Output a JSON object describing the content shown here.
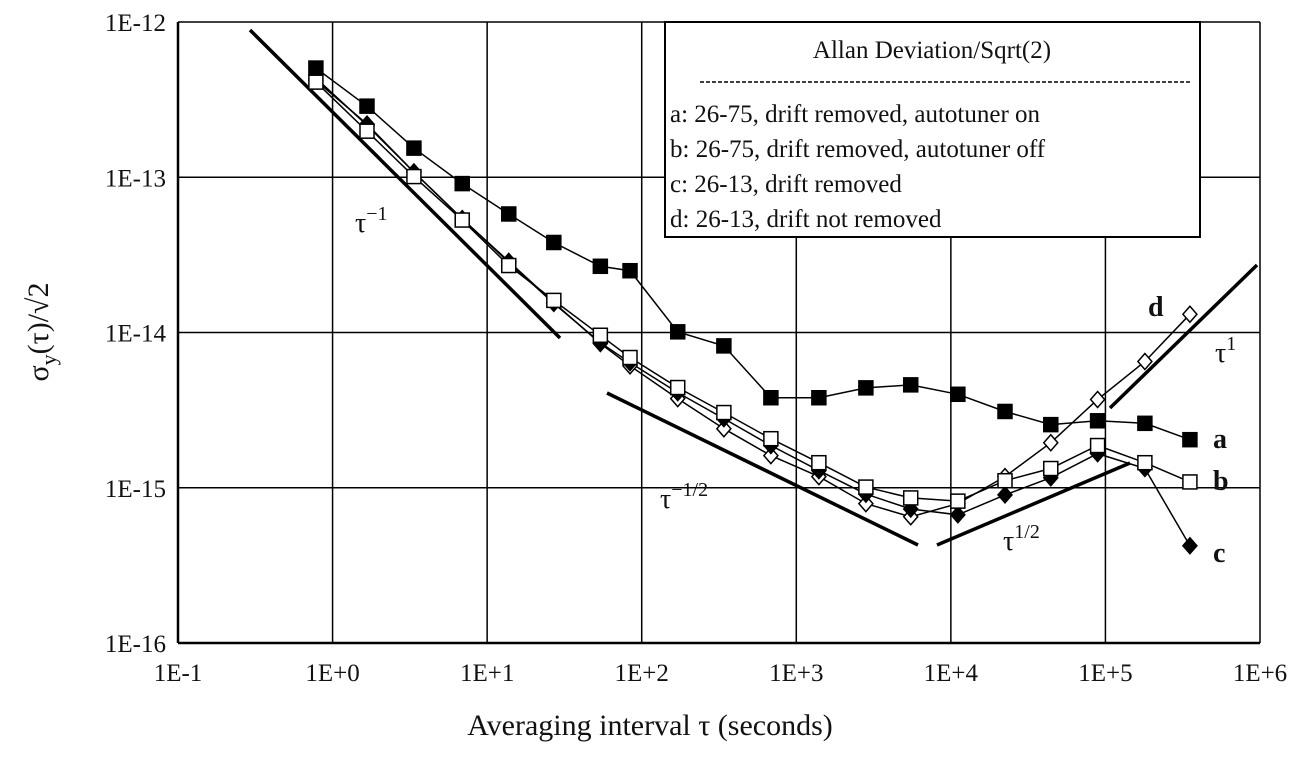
{
  "chart_data": {
    "type": "line",
    "legend_title": "Allan Deviation/Sqrt(2)",
    "xlabel": "Averaging interval τ  (seconds)",
    "ylabel": {
      "main": "σ",
      "sub": "y",
      "rest": "(τ)/√2"
    },
    "xscale": "log",
    "yscale": "log",
    "grid": true,
    "legend": "upper right",
    "xlim": [
      0.1,
      1000000
    ],
    "ylim": [
      1e-16,
      1e-12
    ],
    "xticks": [
      {
        "value": 0.1,
        "label": "1E-1"
      },
      {
        "value": 1,
        "label": "1E+0"
      },
      {
        "value": 10,
        "label": "1E+1"
      },
      {
        "value": 100,
        "label": "1E+2"
      },
      {
        "value": 1000,
        "label": "1E+3"
      },
      {
        "value": 10000,
        "label": "1E+4"
      },
      {
        "value": 100000,
        "label": "1E+5"
      },
      {
        "value": 1000000,
        "label": "1E+6"
      }
    ],
    "yticks": [
      {
        "value": 1e-16,
        "label": "1E-16"
      },
      {
        "value": 1e-15,
        "label": "1E-15"
      },
      {
        "value": 1e-14,
        "label": "1E-14"
      },
      {
        "value": 1e-13,
        "label": "1E-13"
      },
      {
        "value": 1e-12,
        "label": "1E-12"
      }
    ],
    "x": [
      0.78,
      1.67,
      3.36,
      6.9,
      13.8,
      27,
      54,
      84,
      171,
      340,
      685,
      1400,
      2820,
      5500,
      11100,
      22400,
      44300,
      89000,
      180000,
      352000
    ],
    "series": [
      {
        "name": "a: 26-75, drift removed, autotuner on",
        "color": "#000000",
        "marker": "square",
        "filled": true,
        "values": [
          5.05e-13,
          2.87e-13,
          1.54e-13,
          9.1e-14,
          5.8e-14,
          3.8e-14,
          2.67e-14,
          2.5e-14,
          1.01e-14,
          8.2e-15,
          3.8e-15,
          3.8e-15,
          4.4e-15,
          4.6e-15,
          4e-15,
          3.1e-15,
          2.55e-15,
          2.7e-15,
          2.6e-15,
          2.04e-15
        ]
      },
      {
        "name": "b: 26-75, drift removed, autotuner off",
        "color": "#000000",
        "marker": "square",
        "filled": false,
        "values": [
          4.1e-13,
          1.98e-13,
          1.01e-13,
          5.3e-14,
          2.7e-14,
          1.61e-14,
          9.6e-15,
          6.9e-15,
          4.42e-15,
          3.05e-15,
          2.07e-15,
          1.45e-15,
          1.01e-15,
          8.6e-16,
          8.2e-16,
          1.11e-15,
          1.33e-15,
          1.87e-15,
          1.45e-15,
          1.09e-15
        ]
      },
      {
        "name": "c: 26-13, drift removed",
        "color": "#000000",
        "marker": "diamond",
        "filled": true,
        "values": [
          4.35e-13,
          2.16e-13,
          1.08e-13,
          5.4e-14,
          2.83e-14,
          1.54e-14,
          8.6e-15,
          6.4e-15,
          4.1e-15,
          2.79e-15,
          1.87e-15,
          1.29e-15,
          9.1e-16,
          7.3e-16,
          6.7e-16,
          9e-16,
          1.16e-15,
          1.66e-15,
          1.33e-15,
          4.23e-16
        ]
      },
      {
        "name": "d: 26-13, drift not removed",
        "color": "#000000",
        "marker": "diamond",
        "filled": false,
        "values": [
          4.2e-13,
          2.2e-13,
          1.08e-13,
          5.4e-14,
          2.87e-14,
          1.56e-14,
          8.5e-15,
          6.1e-15,
          3.75e-15,
          2.4e-15,
          1.61e-15,
          1.18e-15,
          7.9e-16,
          6.5e-16,
          7.9e-16,
          1.18e-15,
          1.95e-15,
          3.7e-15,
          6.5e-15,
          1.31e-14
        ]
      }
    ],
    "annotations": [
      {
        "text": "a"
      },
      {
        "text": "b"
      },
      {
        "text": "c"
      },
      {
        "text": "d"
      },
      {
        "text": "τ",
        "sup": "−1"
      },
      {
        "text": "τ",
        "sup": "−1/2"
      },
      {
        "text": "τ",
        "sup": "1/2"
      },
      {
        "text": "τ",
        "sup": "1"
      }
    ]
  }
}
